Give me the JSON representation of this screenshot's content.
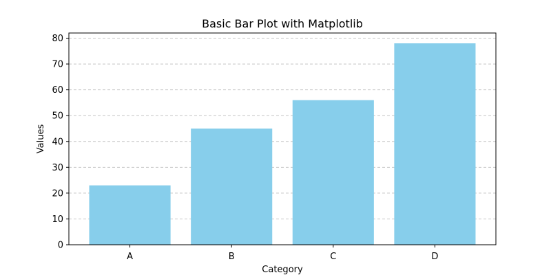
{
  "chart_data": {
    "type": "bar",
    "title": "Basic Bar Plot with Matplotlib",
    "xlabel": "Category",
    "ylabel": "Values",
    "categories": [
      "A",
      "B",
      "C",
      "D"
    ],
    "values": [
      23,
      45,
      56,
      78
    ],
    "ylim": [
      0,
      82
    ],
    "yticks": [
      0,
      10,
      20,
      30,
      40,
      50,
      60,
      70,
      80
    ],
    "grid": {
      "axis": "y",
      "style": "dashed"
    },
    "colors": {
      "bar": "#87ceeb",
      "grid": "#c4c4c4",
      "axis": "#000000",
      "text": "#000000"
    }
  }
}
